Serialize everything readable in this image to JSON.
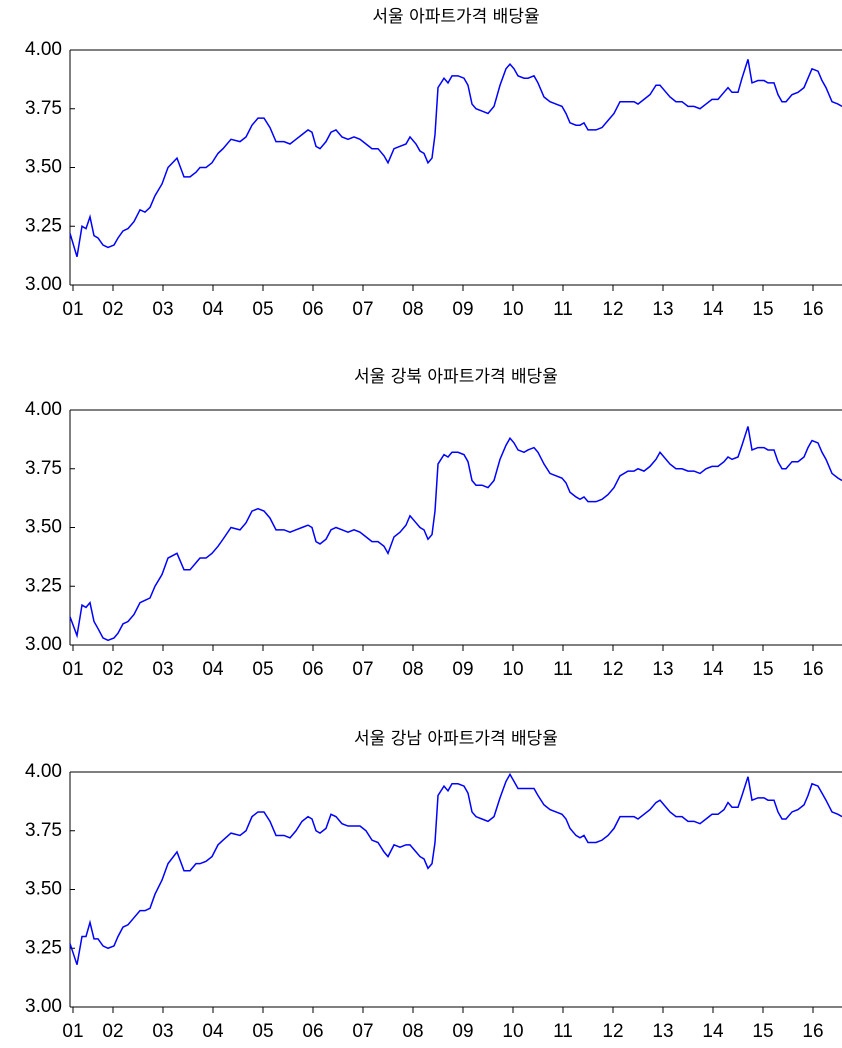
{
  "chart_data": [
    {
      "type": "line",
      "title": "서울 아파트가격 배당율",
      "color": "#0000ff",
      "x": [
        2001.64,
        2001.78,
        2001.88,
        2001.96,
        2002.04,
        2002.12,
        2002.2,
        2002.3,
        2002.4,
        2002.52,
        2002.6,
        2002.7,
        2002.8,
        2002.92,
        2003.04,
        2003.14,
        2003.24,
        2003.34,
        2003.48,
        2003.6,
        2003.78,
        2003.92,
        2004.04,
        2004.16,
        2004.24,
        2004.36,
        2004.48,
        2004.6,
        2004.7,
        2004.86,
        2005.04,
        2005.16,
        2005.28,
        2005.4,
        2005.52,
        2005.64,
        2005.76,
        2005.92,
        2006.04,
        2006.16,
        2006.28,
        2006.4,
        2006.48,
        2006.56,
        2006.64,
        2006.76,
        2006.86,
        2006.96,
        2007.08,
        2007.2,
        2007.32,
        2007.44,
        2007.56,
        2007.68,
        2007.8,
        2007.92,
        2008.0,
        2008.12,
        2008.24,
        2008.36,
        2008.44,
        2008.56,
        2008.64,
        2008.72,
        2008.8,
        2008.88,
        2008.94,
        2009.0,
        2009.12,
        2009.2,
        2009.28,
        2009.4,
        2009.52,
        2009.6,
        2009.68,
        2009.76,
        2009.88,
        2010.0,
        2010.12,
        2010.24,
        2010.36,
        2010.44,
        2010.52,
        2010.6,
        2010.72,
        2010.8,
        2010.92,
        2011.0,
        2011.12,
        2011.24,
        2011.36,
        2011.48,
        2011.56,
        2011.64,
        2011.76,
        2011.84,
        2011.92,
        2012.0,
        2012.16,
        2012.28,
        2012.4,
        2012.52,
        2012.64,
        2012.8,
        2012.92,
        2013.0,
        2013.12,
        2013.24,
        2013.36,
        2013.44,
        2013.52,
        2013.64,
        2013.76,
        2013.88,
        2014.0,
        2014.12,
        2014.24,
        2014.36,
        2014.48,
        2014.6,
        2014.72,
        2014.8,
        2014.88,
        2015.0,
        2015.08,
        2015.2,
        2015.28,
        2015.4,
        2015.52,
        2015.6,
        2015.72,
        2015.8,
        2015.88,
        2015.96,
        2016.08,
        2016.2,
        2016.32,
        2016.4,
        2016.48,
        2016.6,
        2016.68,
        2016.76,
        2016.88,
        2017.0,
        2017.08
      ],
      "values": [
        3.22,
        3.12,
        3.25,
        3.24,
        3.29,
        3.21,
        3.2,
        3.17,
        3.16,
        3.17,
        3.2,
        3.23,
        3.24,
        3.27,
        3.32,
        3.31,
        3.33,
        3.38,
        3.43,
        3.5,
        3.54,
        3.46,
        3.46,
        3.48,
        3.5,
        3.5,
        3.52,
        3.56,
        3.58,
        3.62,
        3.61,
        3.63,
        3.68,
        3.71,
        3.71,
        3.67,
        3.61,
        3.61,
        3.6,
        3.62,
        3.64,
        3.66,
        3.65,
        3.59,
        3.58,
        3.61,
        3.65,
        3.66,
        3.63,
        3.62,
        3.63,
        3.62,
        3.6,
        3.58,
        3.58,
        3.55,
        3.52,
        3.58,
        3.59,
        3.6,
        3.63,
        3.6,
        3.57,
        3.56,
        3.52,
        3.54,
        3.64,
        3.84,
        3.88,
        3.86,
        3.89,
        3.89,
        3.88,
        3.85,
        3.77,
        3.75,
        3.74,
        3.73,
        3.76,
        3.85,
        3.92,
        3.94,
        3.92,
        3.89,
        3.88,
        3.88,
        3.89,
        3.86,
        3.8,
        3.78,
        3.77,
        3.76,
        3.73,
        3.69,
        3.68,
        3.68,
        3.69,
        3.66,
        3.66,
        3.67,
        3.7,
        3.73,
        3.78,
        3.78,
        3.78,
        3.77,
        3.79,
        3.81,
        3.85,
        3.85,
        3.83,
        3.8,
        3.78,
        3.78,
        3.76,
        3.76,
        3.75,
        3.77,
        3.79,
        3.79,
        3.82,
        3.84,
        3.82,
        3.82,
        3.88,
        3.96,
        3.86,
        3.87,
        3.87,
        3.86,
        3.86,
        3.81,
        3.78,
        3.78,
        3.81,
        3.82,
        3.84,
        3.88,
        3.92,
        3.91,
        3.87,
        3.84,
        3.78,
        3.77,
        3.76
      ],
      "xlim": [
        2001.64,
        2017.08
      ],
      "xticks": [
        {
          "value": 2001.7,
          "label": "01"
        },
        {
          "value": 2002.5,
          "label": "02"
        },
        {
          "value": 2003.5,
          "label": "03"
        },
        {
          "value": 2004.5,
          "label": "04"
        },
        {
          "value": 2005.5,
          "label": "05"
        },
        {
          "value": 2006.5,
          "label": "06"
        },
        {
          "value": 2007.5,
          "label": "07"
        },
        {
          "value": 2008.5,
          "label": "08"
        },
        {
          "value": 2009.5,
          "label": "09"
        },
        {
          "value": 2010.5,
          "label": "10"
        },
        {
          "value": 2011.5,
          "label": "11"
        },
        {
          "value": 2012.5,
          "label": "12"
        },
        {
          "value": 2013.5,
          "label": "13"
        },
        {
          "value": 2014.5,
          "label": "14"
        },
        {
          "value": 2015.5,
          "label": "15"
        },
        {
          "value": 2016.5,
          "label": "16"
        }
      ],
      "ylim": [
        3,
        4
      ],
      "yticks": [
        {
          "value": 3,
          "label": "3.00"
        },
        3.25,
        {
          "value": 3.5,
          "label": "3.50"
        },
        3.75,
        {
          "value": 4,
          "label": "4.00"
        }
      ]
    },
    {
      "type": "line",
      "title": "서울 강북 아파트가격 배당율",
      "color": "#0000ff",
      "x": [
        2001.64,
        2001.78,
        2001.88,
        2001.96,
        2002.04,
        2002.12,
        2002.2,
        2002.3,
        2002.4,
        2002.52,
        2002.6,
        2002.7,
        2002.8,
        2002.92,
        2003.04,
        2003.14,
        2003.24,
        2003.34,
        2003.48,
        2003.6,
        2003.78,
        2003.92,
        2004.04,
        2004.16,
        2004.24,
        2004.36,
        2004.48,
        2004.6,
        2004.7,
        2004.86,
        2005.04,
        2005.16,
        2005.28,
        2005.4,
        2005.52,
        2005.64,
        2005.76,
        2005.92,
        2006.04,
        2006.16,
        2006.28,
        2006.4,
        2006.48,
        2006.56,
        2006.64,
        2006.76,
        2006.86,
        2006.96,
        2007.08,
        2007.2,
        2007.32,
        2007.44,
        2007.56,
        2007.68,
        2007.8,
        2007.92,
        2008.0,
        2008.12,
        2008.24,
        2008.36,
        2008.44,
        2008.56,
        2008.64,
        2008.72,
        2008.8,
        2008.88,
        2008.94,
        2009.0,
        2009.12,
        2009.2,
        2009.28,
        2009.4,
        2009.52,
        2009.6,
        2009.68,
        2009.76,
        2009.88,
        2010.0,
        2010.12,
        2010.24,
        2010.36,
        2010.44,
        2010.52,
        2010.6,
        2010.72,
        2010.8,
        2010.92,
        2011.0,
        2011.12,
        2011.24,
        2011.36,
        2011.48,
        2011.56,
        2011.64,
        2011.76,
        2011.84,
        2011.92,
        2012.0,
        2012.16,
        2012.28,
        2012.4,
        2012.52,
        2012.64,
        2012.8,
        2012.92,
        2013.0,
        2013.12,
        2013.24,
        2013.36,
        2013.44,
        2013.52,
        2013.64,
        2013.76,
        2013.88,
        2014.0,
        2014.12,
        2014.24,
        2014.36,
        2014.48,
        2014.6,
        2014.72,
        2014.8,
        2014.88,
        2015.0,
        2015.08,
        2015.2,
        2015.28,
        2015.4,
        2015.52,
        2015.6,
        2015.72,
        2015.8,
        2015.88,
        2015.96,
        2016.08,
        2016.2,
        2016.32,
        2016.4,
        2016.48,
        2016.6,
        2016.68,
        2016.76,
        2016.88,
        2017.0,
        2017.08
      ],
      "values": [
        3.12,
        3.04,
        3.17,
        3.16,
        3.18,
        3.1,
        3.07,
        3.03,
        3.02,
        3.03,
        3.05,
        3.09,
        3.1,
        3.13,
        3.18,
        3.19,
        3.2,
        3.25,
        3.3,
        3.37,
        3.39,
        3.32,
        3.32,
        3.35,
        3.37,
        3.37,
        3.39,
        3.42,
        3.45,
        3.5,
        3.49,
        3.52,
        3.57,
        3.58,
        3.57,
        3.54,
        3.49,
        3.49,
        3.48,
        3.49,
        3.5,
        3.51,
        3.5,
        3.44,
        3.43,
        3.45,
        3.49,
        3.5,
        3.49,
        3.48,
        3.49,
        3.48,
        3.46,
        3.44,
        3.44,
        3.42,
        3.39,
        3.46,
        3.48,
        3.51,
        3.55,
        3.52,
        3.5,
        3.49,
        3.45,
        3.47,
        3.57,
        3.77,
        3.81,
        3.8,
        3.82,
        3.82,
        3.81,
        3.78,
        3.7,
        3.68,
        3.68,
        3.67,
        3.7,
        3.79,
        3.85,
        3.88,
        3.86,
        3.83,
        3.82,
        3.83,
        3.84,
        3.82,
        3.77,
        3.73,
        3.72,
        3.71,
        3.69,
        3.65,
        3.63,
        3.62,
        3.63,
        3.61,
        3.61,
        3.62,
        3.64,
        3.67,
        3.72,
        3.74,
        3.74,
        3.75,
        3.74,
        3.76,
        3.79,
        3.82,
        3.8,
        3.77,
        3.75,
        3.75,
        3.74,
        3.74,
        3.73,
        3.75,
        3.76,
        3.76,
        3.78,
        3.8,
        3.79,
        3.8,
        3.85,
        3.93,
        3.83,
        3.84,
        3.84,
        3.83,
        3.83,
        3.78,
        3.75,
        3.75,
        3.78,
        3.78,
        3.8,
        3.84,
        3.87,
        3.86,
        3.82,
        3.79,
        3.73,
        3.71,
        3.7
      ],
      "xlim": [
        2001.64,
        2017.08
      ],
      "xticks": [
        {
          "value": 2001.7,
          "label": "01"
        },
        {
          "value": 2002.5,
          "label": "02"
        },
        {
          "value": 2003.5,
          "label": "03"
        },
        {
          "value": 2004.5,
          "label": "04"
        },
        {
          "value": 2005.5,
          "label": "05"
        },
        {
          "value": 2006.5,
          "label": "06"
        },
        {
          "value": 2007.5,
          "label": "07"
        },
        {
          "value": 2008.5,
          "label": "08"
        },
        {
          "value": 2009.5,
          "label": "09"
        },
        {
          "value": 2010.5,
          "label": "10"
        },
        {
          "value": 2011.5,
          "label": "11"
        },
        {
          "value": 2012.5,
          "label": "12"
        },
        {
          "value": 2013.5,
          "label": "13"
        },
        {
          "value": 2014.5,
          "label": "14"
        },
        {
          "value": 2015.5,
          "label": "15"
        },
        {
          "value": 2016.5,
          "label": "16"
        }
      ],
      "ylim": [
        3,
        4
      ],
      "yticks": [
        {
          "value": 3,
          "label": "3.00"
        },
        3.25,
        {
          "value": 3.5,
          "label": "3.50"
        },
        3.75,
        {
          "value": 4,
          "label": "4.00"
        }
      ]
    },
    {
      "type": "line",
      "title": "서울 강남 아파트가격 배당율",
      "color": "#0000ff",
      "x": [
        2001.64,
        2001.78,
        2001.88,
        2001.96,
        2002.04,
        2002.12,
        2002.2,
        2002.3,
        2002.4,
        2002.52,
        2002.6,
        2002.7,
        2002.8,
        2002.92,
        2003.04,
        2003.14,
        2003.24,
        2003.34,
        2003.48,
        2003.6,
        2003.78,
        2003.92,
        2004.04,
        2004.16,
        2004.24,
        2004.36,
        2004.48,
        2004.6,
        2004.7,
        2004.86,
        2005.04,
        2005.16,
        2005.28,
        2005.4,
        2005.52,
        2005.64,
        2005.76,
        2005.92,
        2006.04,
        2006.16,
        2006.28,
        2006.4,
        2006.48,
        2006.56,
        2006.64,
        2006.76,
        2006.86,
        2006.96,
        2007.08,
        2007.2,
        2007.32,
        2007.44,
        2007.56,
        2007.68,
        2007.8,
        2007.92,
        2008.0,
        2008.12,
        2008.24,
        2008.36,
        2008.44,
        2008.56,
        2008.64,
        2008.72,
        2008.8,
        2008.88,
        2008.94,
        2009.0,
        2009.12,
        2009.2,
        2009.28,
        2009.4,
        2009.52,
        2009.6,
        2009.68,
        2009.76,
        2009.88,
        2010.0,
        2010.12,
        2010.24,
        2010.36,
        2010.44,
        2010.52,
        2010.6,
        2010.72,
        2010.8,
        2010.92,
        2011.0,
        2011.12,
        2011.24,
        2011.36,
        2011.48,
        2011.56,
        2011.64,
        2011.76,
        2011.84,
        2011.92,
        2012.0,
        2012.16,
        2012.28,
        2012.4,
        2012.52,
        2012.64,
        2012.8,
        2012.92,
        2013.0,
        2013.12,
        2013.24,
        2013.36,
        2013.44,
        2013.52,
        2013.64,
        2013.76,
        2013.88,
        2014.0,
        2014.12,
        2014.24,
        2014.36,
        2014.48,
        2014.6,
        2014.72,
        2014.8,
        2014.88,
        2015.0,
        2015.08,
        2015.2,
        2015.28,
        2015.4,
        2015.52,
        2015.6,
        2015.72,
        2015.8,
        2015.88,
        2015.96,
        2016.08,
        2016.2,
        2016.32,
        2016.4,
        2016.48,
        2016.6,
        2016.68,
        2016.76,
        2016.88,
        2017.0,
        2017.08
      ],
      "values": [
        3.27,
        3.18,
        3.3,
        3.3,
        3.36,
        3.29,
        3.29,
        3.26,
        3.25,
        3.26,
        3.3,
        3.34,
        3.35,
        3.38,
        3.41,
        3.41,
        3.42,
        3.48,
        3.54,
        3.61,
        3.66,
        3.58,
        3.58,
        3.61,
        3.61,
        3.62,
        3.64,
        3.69,
        3.71,
        3.74,
        3.73,
        3.75,
        3.81,
        3.83,
        3.83,
        3.79,
        3.73,
        3.73,
        3.72,
        3.75,
        3.79,
        3.81,
        3.8,
        3.75,
        3.74,
        3.76,
        3.82,
        3.81,
        3.78,
        3.77,
        3.77,
        3.77,
        3.75,
        3.71,
        3.7,
        3.66,
        3.64,
        3.69,
        3.68,
        3.69,
        3.69,
        3.66,
        3.64,
        3.63,
        3.59,
        3.61,
        3.7,
        3.9,
        3.94,
        3.92,
        3.95,
        3.95,
        3.94,
        3.91,
        3.83,
        3.81,
        3.8,
        3.79,
        3.81,
        3.89,
        3.96,
        3.99,
        3.96,
        3.93,
        3.93,
        3.93,
        3.93,
        3.9,
        3.86,
        3.84,
        3.83,
        3.82,
        3.8,
        3.76,
        3.73,
        3.72,
        3.73,
        3.7,
        3.7,
        3.71,
        3.73,
        3.76,
        3.81,
        3.81,
        3.81,
        3.8,
        3.82,
        3.84,
        3.87,
        3.88,
        3.86,
        3.83,
        3.81,
        3.81,
        3.79,
        3.79,
        3.78,
        3.8,
        3.82,
        3.82,
        3.84,
        3.87,
        3.85,
        3.85,
        3.9,
        3.98,
        3.88,
        3.89,
        3.89,
        3.88,
        3.88,
        3.83,
        3.8,
        3.8,
        3.83,
        3.84,
        3.86,
        3.9,
        3.95,
        3.94,
        3.91,
        3.88,
        3.83,
        3.82,
        3.81
      ],
      "xlim": [
        2001.64,
        2017.08
      ],
      "xticks": [
        {
          "value": 2001.7,
          "label": "01"
        },
        {
          "value": 2002.5,
          "label": "02"
        },
        {
          "value": 2003.5,
          "label": "03"
        },
        {
          "value": 2004.5,
          "label": "04"
        },
        {
          "value": 2005.5,
          "label": "05"
        },
        {
          "value": 2006.5,
          "label": "06"
        },
        {
          "value": 2007.5,
          "label": "07"
        },
        {
          "value": 2008.5,
          "label": "08"
        },
        {
          "value": 2009.5,
          "label": "09"
        },
        {
          "value": 2010.5,
          "label": "10"
        },
        {
          "value": 2011.5,
          "label": "11"
        },
        {
          "value": 2012.5,
          "label": "12"
        },
        {
          "value": 2013.5,
          "label": "13"
        },
        {
          "value": 2014.5,
          "label": "14"
        },
        {
          "value": 2015.5,
          "label": "15"
        },
        {
          "value": 2016.5,
          "label": "16"
        }
      ],
      "ylim": [
        3,
        4
      ],
      "yticks": [
        {
          "value": 3,
          "label": "3.00"
        },
        3.25,
        {
          "value": 3.5,
          "label": "3.50"
        },
        3.75,
        {
          "value": 4,
          "label": "4.00"
        }
      ]
    }
  ]
}
